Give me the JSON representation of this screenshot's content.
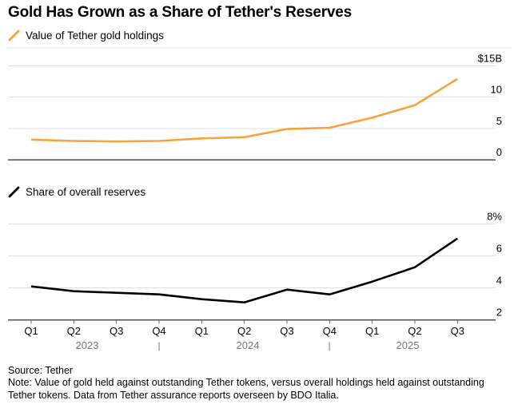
{
  "header": {
    "title": "Gold Has Grown as a Share of Tether's Reserves"
  },
  "colors": {
    "accent_orange": "#F7A33C",
    "series_black": "#000000",
    "grid_light": "#DEDEDE",
    "axis_dark": "#4E4E4E",
    "tick_gray": "#6F6F6F",
    "year_gray": "#757575"
  },
  "chart_data": [
    {
      "type": "line",
      "title": "Value of Tether gold holdings",
      "unit": "billion USD",
      "categories": [
        "Q1 2023",
        "Q2 2023",
        "Q3 2023",
        "Q4 2023",
        "Q1 2024",
        "Q2 2024",
        "Q3 2024",
        "Q4 2024",
        "Q1 2025",
        "Q2 2025",
        "Q3 2025"
      ],
      "values": [
        3.2,
        3.0,
        2.9,
        3.0,
        3.4,
        3.6,
        4.9,
        5.1,
        6.7,
        8.7,
        12.9
      ],
      "ylim": [
        0,
        15
      ],
      "yticks": [
        {
          "value": 15,
          "label": "$15B"
        },
        {
          "value": 10,
          "label": "10"
        },
        {
          "value": 5,
          "label": "5"
        },
        {
          "value": 0,
          "label": "0"
        }
      ],
      "line_color": "#F7A33C",
      "grid": true,
      "legend_position": "top-left"
    },
    {
      "type": "line",
      "title": "Share of overall reserves",
      "unit": "percent",
      "categories": [
        "Q1 2023",
        "Q2 2023",
        "Q3 2023",
        "Q4 2023",
        "Q1 2024",
        "Q2 2024",
        "Q3 2024",
        "Q4 2024",
        "Q1 2025",
        "Q2 2025",
        "Q3 2025"
      ],
      "values": [
        4.1,
        3.8,
        3.7,
        3.6,
        3.3,
        3.1,
        3.9,
        3.6,
        4.4,
        5.3,
        7.1
      ],
      "ylim": [
        2,
        8
      ],
      "yticks": [
        {
          "value": 8,
          "label": "8%"
        },
        {
          "value": 6,
          "label": "6"
        },
        {
          "value": 4,
          "label": "4"
        },
        {
          "value": 2,
          "label": "2"
        }
      ],
      "line_color": "#000000",
      "grid": true,
      "legend_position": "top-left"
    }
  ],
  "xaxis": {
    "quarter_labels": [
      "Q1",
      "Q2",
      "Q3",
      "Q4",
      "Q1",
      "Q2",
      "Q3",
      "Q4",
      "Q1",
      "Q2",
      "Q3"
    ],
    "years": [
      "2023",
      "2024",
      "2025"
    ],
    "year_divider": "|"
  },
  "footer": {
    "source": "Source: Tether",
    "note": "Note: Value of gold held against outstanding Tether tokens, versus overall holdings held against outstanding Tether tokens. Data from Tether assurance reports overseen by BDO Italia."
  }
}
